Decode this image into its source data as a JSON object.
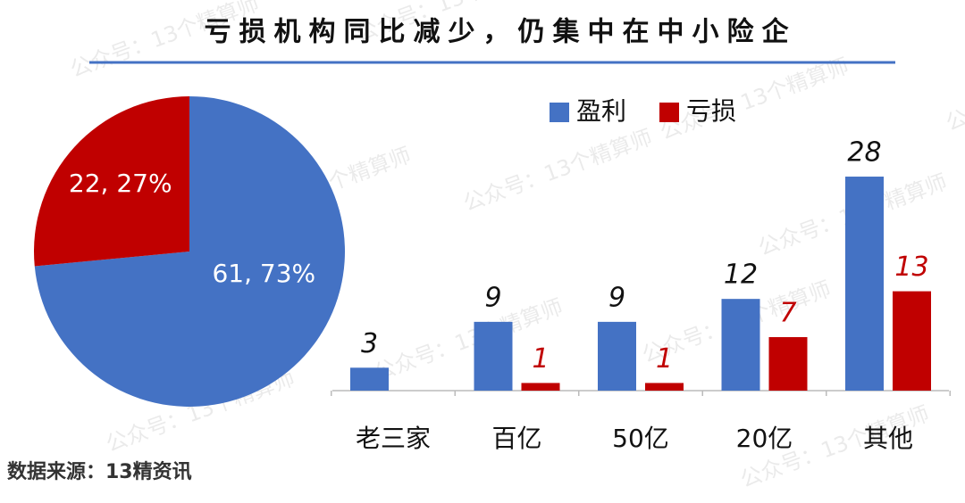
{
  "title": "亏损机构同比减少，仍集中在中小险企",
  "source": "数据来源：13精资讯",
  "watermark": "公众号：13个精算师",
  "chart_data": [
    {
      "type": "pie",
      "series_names": [
        "盈利",
        "亏损"
      ],
      "values": [
        61,
        22
      ],
      "value_labels": [
        "61, 73%",
        "22, 27%"
      ],
      "colors": [
        "#4472c4",
        "#c00000"
      ]
    },
    {
      "type": "bar",
      "categories": [
        "老三家",
        "百亿",
        "50亿",
        "20亿",
        "其他"
      ],
      "series": [
        {
          "name": "盈利",
          "color": "#4472c4",
          "values": [
            3,
            9,
            9,
            12,
            28
          ]
        },
        {
          "name": "亏损",
          "color": "#c00000",
          "values": [
            null,
            1,
            1,
            7,
            13
          ]
        }
      ]
    }
  ]
}
